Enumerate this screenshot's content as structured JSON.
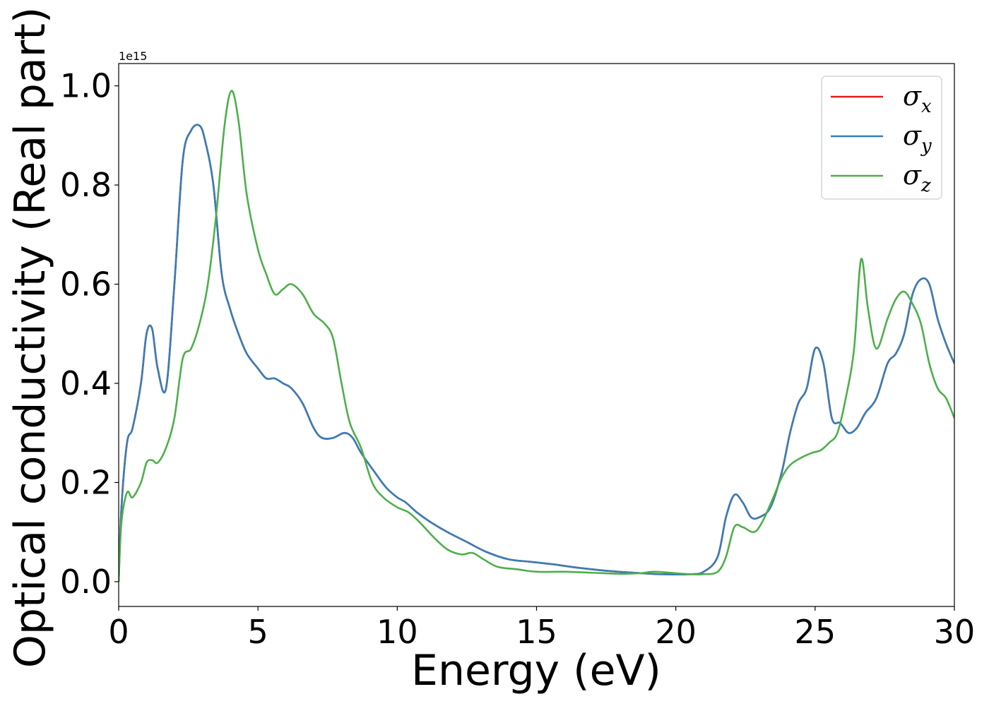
{
  "chart_data": {
    "type": "line",
    "xlabel": "Energy (eV)",
    "ylabel": "Optical conductivity (Real part)",
    "y_offset_label": "1e15",
    "xlim": [
      0,
      30
    ],
    "ylim": [
      -0.05,
      1.045
    ],
    "xticks": [
      0,
      5,
      10,
      15,
      20,
      25,
      30
    ],
    "xtick_labels": [
      "0",
      "5",
      "10",
      "15",
      "20",
      "25",
      "30"
    ],
    "yticks": [
      0.0,
      0.2,
      0.4,
      0.6,
      0.8,
      1.0
    ],
    "ytick_labels": [
      "0.0",
      "0.2",
      "0.4",
      "0.6",
      "0.8",
      "1.0"
    ],
    "grid": false,
    "legend": {
      "position": "top-right",
      "entries": [
        {
          "symbol": "σ",
          "subscript": "x",
          "color": "#e41a1c"
        },
        {
          "symbol": "σ",
          "subscript": "y",
          "color": "#377eb8"
        },
        {
          "symbol": "σ",
          "subscript": "z",
          "color": "#4daf4a"
        }
      ]
    },
    "series": [
      {
        "key": "x",
        "color": "#e41a1c",
        "x": [
          0,
          0.1,
          0.3,
          0.5,
          0.8,
          1.0,
          1.2,
          1.4,
          1.7,
          2.0,
          2.3,
          2.6,
          2.9,
          3.1,
          3.4,
          3.7,
          4.0,
          4.3,
          4.6,
          5.0,
          5.3,
          5.6,
          5.9,
          6.2,
          6.6,
          7.0,
          7.3,
          7.7,
          8.1,
          8.4,
          8.7,
          9.2,
          9.6,
          10.0,
          10.3,
          10.7,
          11.2,
          11.8,
          12.5,
          13.2,
          14.0,
          14.8,
          15.6,
          16.5,
          17.5,
          18.5,
          19.5,
          20.5,
          21.0,
          21.5,
          21.8,
          22.1,
          22.4,
          22.7,
          23.0,
          23.4,
          23.8,
          24.1,
          24.4,
          24.7,
          25.0,
          25.3,
          25.6,
          25.9,
          26.2,
          26.5,
          26.8,
          27.2,
          27.6,
          27.9,
          28.2,
          28.5,
          28.8,
          29.1,
          29.4,
          29.7,
          30.0
        ],
        "y": [
          0.0,
          0.15,
          0.28,
          0.31,
          0.4,
          0.5,
          0.51,
          0.43,
          0.39,
          0.6,
          0.85,
          0.91,
          0.92,
          0.89,
          0.8,
          0.62,
          0.55,
          0.5,
          0.46,
          0.43,
          0.41,
          0.41,
          0.4,
          0.39,
          0.36,
          0.31,
          0.29,
          0.29,
          0.3,
          0.29,
          0.26,
          0.22,
          0.19,
          0.17,
          0.16,
          0.14,
          0.12,
          0.1,
          0.08,
          0.06,
          0.045,
          0.04,
          0.035,
          0.028,
          0.022,
          0.018,
          0.015,
          0.015,
          0.02,
          0.05,
          0.13,
          0.175,
          0.16,
          0.13,
          0.13,
          0.15,
          0.22,
          0.3,
          0.36,
          0.39,
          0.47,
          0.44,
          0.33,
          0.32,
          0.3,
          0.31,
          0.34,
          0.37,
          0.44,
          0.46,
          0.5,
          0.58,
          0.61,
          0.6,
          0.53,
          0.48,
          0.44
        ]
      },
      {
        "key": "y",
        "color": "#377eb8",
        "x": [
          0,
          0.1,
          0.3,
          0.5,
          0.8,
          1.0,
          1.2,
          1.4,
          1.7,
          2.0,
          2.3,
          2.6,
          2.9,
          3.1,
          3.4,
          3.7,
          4.0,
          4.3,
          4.6,
          5.0,
          5.3,
          5.6,
          5.9,
          6.2,
          6.6,
          7.0,
          7.3,
          7.7,
          8.1,
          8.4,
          8.7,
          9.2,
          9.6,
          10.0,
          10.3,
          10.7,
          11.2,
          11.8,
          12.5,
          13.2,
          14.0,
          14.8,
          15.6,
          16.5,
          17.5,
          18.5,
          19.5,
          20.5,
          21.0,
          21.5,
          21.8,
          22.1,
          22.4,
          22.7,
          23.0,
          23.4,
          23.8,
          24.1,
          24.4,
          24.7,
          25.0,
          25.3,
          25.6,
          25.9,
          26.2,
          26.5,
          26.8,
          27.2,
          27.6,
          27.9,
          28.2,
          28.5,
          28.8,
          29.1,
          29.4,
          29.7,
          30.0
        ],
        "y": [
          0.0,
          0.15,
          0.28,
          0.31,
          0.4,
          0.5,
          0.51,
          0.43,
          0.39,
          0.6,
          0.85,
          0.91,
          0.92,
          0.89,
          0.8,
          0.62,
          0.55,
          0.5,
          0.46,
          0.43,
          0.41,
          0.41,
          0.4,
          0.39,
          0.36,
          0.31,
          0.29,
          0.29,
          0.3,
          0.29,
          0.26,
          0.22,
          0.19,
          0.17,
          0.16,
          0.14,
          0.12,
          0.1,
          0.08,
          0.06,
          0.045,
          0.04,
          0.035,
          0.028,
          0.022,
          0.018,
          0.015,
          0.015,
          0.02,
          0.05,
          0.13,
          0.175,
          0.16,
          0.13,
          0.13,
          0.15,
          0.22,
          0.3,
          0.36,
          0.39,
          0.47,
          0.44,
          0.33,
          0.32,
          0.3,
          0.31,
          0.34,
          0.37,
          0.44,
          0.46,
          0.5,
          0.58,
          0.61,
          0.6,
          0.53,
          0.48,
          0.44
        ]
      },
      {
        "key": "z",
        "color": "#4daf4a",
        "x": [
          0,
          0.1,
          0.3,
          0.5,
          0.8,
          1.0,
          1.2,
          1.4,
          1.7,
          2.0,
          2.3,
          2.6,
          2.9,
          3.2,
          3.5,
          3.8,
          4.05,
          4.3,
          4.6,
          5.0,
          5.3,
          5.6,
          5.9,
          6.2,
          6.6,
          7.0,
          7.4,
          7.7,
          8.0,
          8.3,
          8.7,
          9.1,
          9.5,
          10.0,
          10.4,
          10.8,
          11.3,
          11.8,
          12.3,
          12.7,
          13.1,
          13.6,
          14.3,
          15.0,
          16.0,
          17.0,
          18.0,
          18.7,
          19.2,
          19.8,
          20.5,
          21.0,
          21.5,
          21.8,
          22.1,
          22.4,
          22.8,
          23.1,
          23.5,
          23.8,
          24.1,
          24.5,
          24.9,
          25.2,
          25.5,
          25.8,
          26.1,
          26.4,
          26.65,
          26.9,
          27.2,
          27.6,
          27.9,
          28.2,
          28.5,
          28.8,
          29.1,
          29.4,
          29.7,
          30.0
        ],
        "y": [
          0.0,
          0.12,
          0.18,
          0.17,
          0.2,
          0.24,
          0.245,
          0.24,
          0.27,
          0.33,
          0.45,
          0.47,
          0.52,
          0.6,
          0.74,
          0.92,
          0.99,
          0.93,
          0.78,
          0.67,
          0.62,
          0.58,
          0.59,
          0.6,
          0.58,
          0.54,
          0.52,
          0.49,
          0.4,
          0.32,
          0.27,
          0.2,
          0.17,
          0.15,
          0.14,
          0.12,
          0.09,
          0.065,
          0.055,
          0.058,
          0.045,
          0.03,
          0.025,
          0.02,
          0.02,
          0.018,
          0.016,
          0.017,
          0.02,
          0.018,
          0.015,
          0.015,
          0.02,
          0.05,
          0.11,
          0.11,
          0.1,
          0.12,
          0.17,
          0.21,
          0.235,
          0.25,
          0.26,
          0.265,
          0.28,
          0.3,
          0.37,
          0.47,
          0.65,
          0.55,
          0.47,
          0.53,
          0.57,
          0.585,
          0.56,
          0.52,
          0.44,
          0.39,
          0.37,
          0.33
        ]
      }
    ]
  }
}
